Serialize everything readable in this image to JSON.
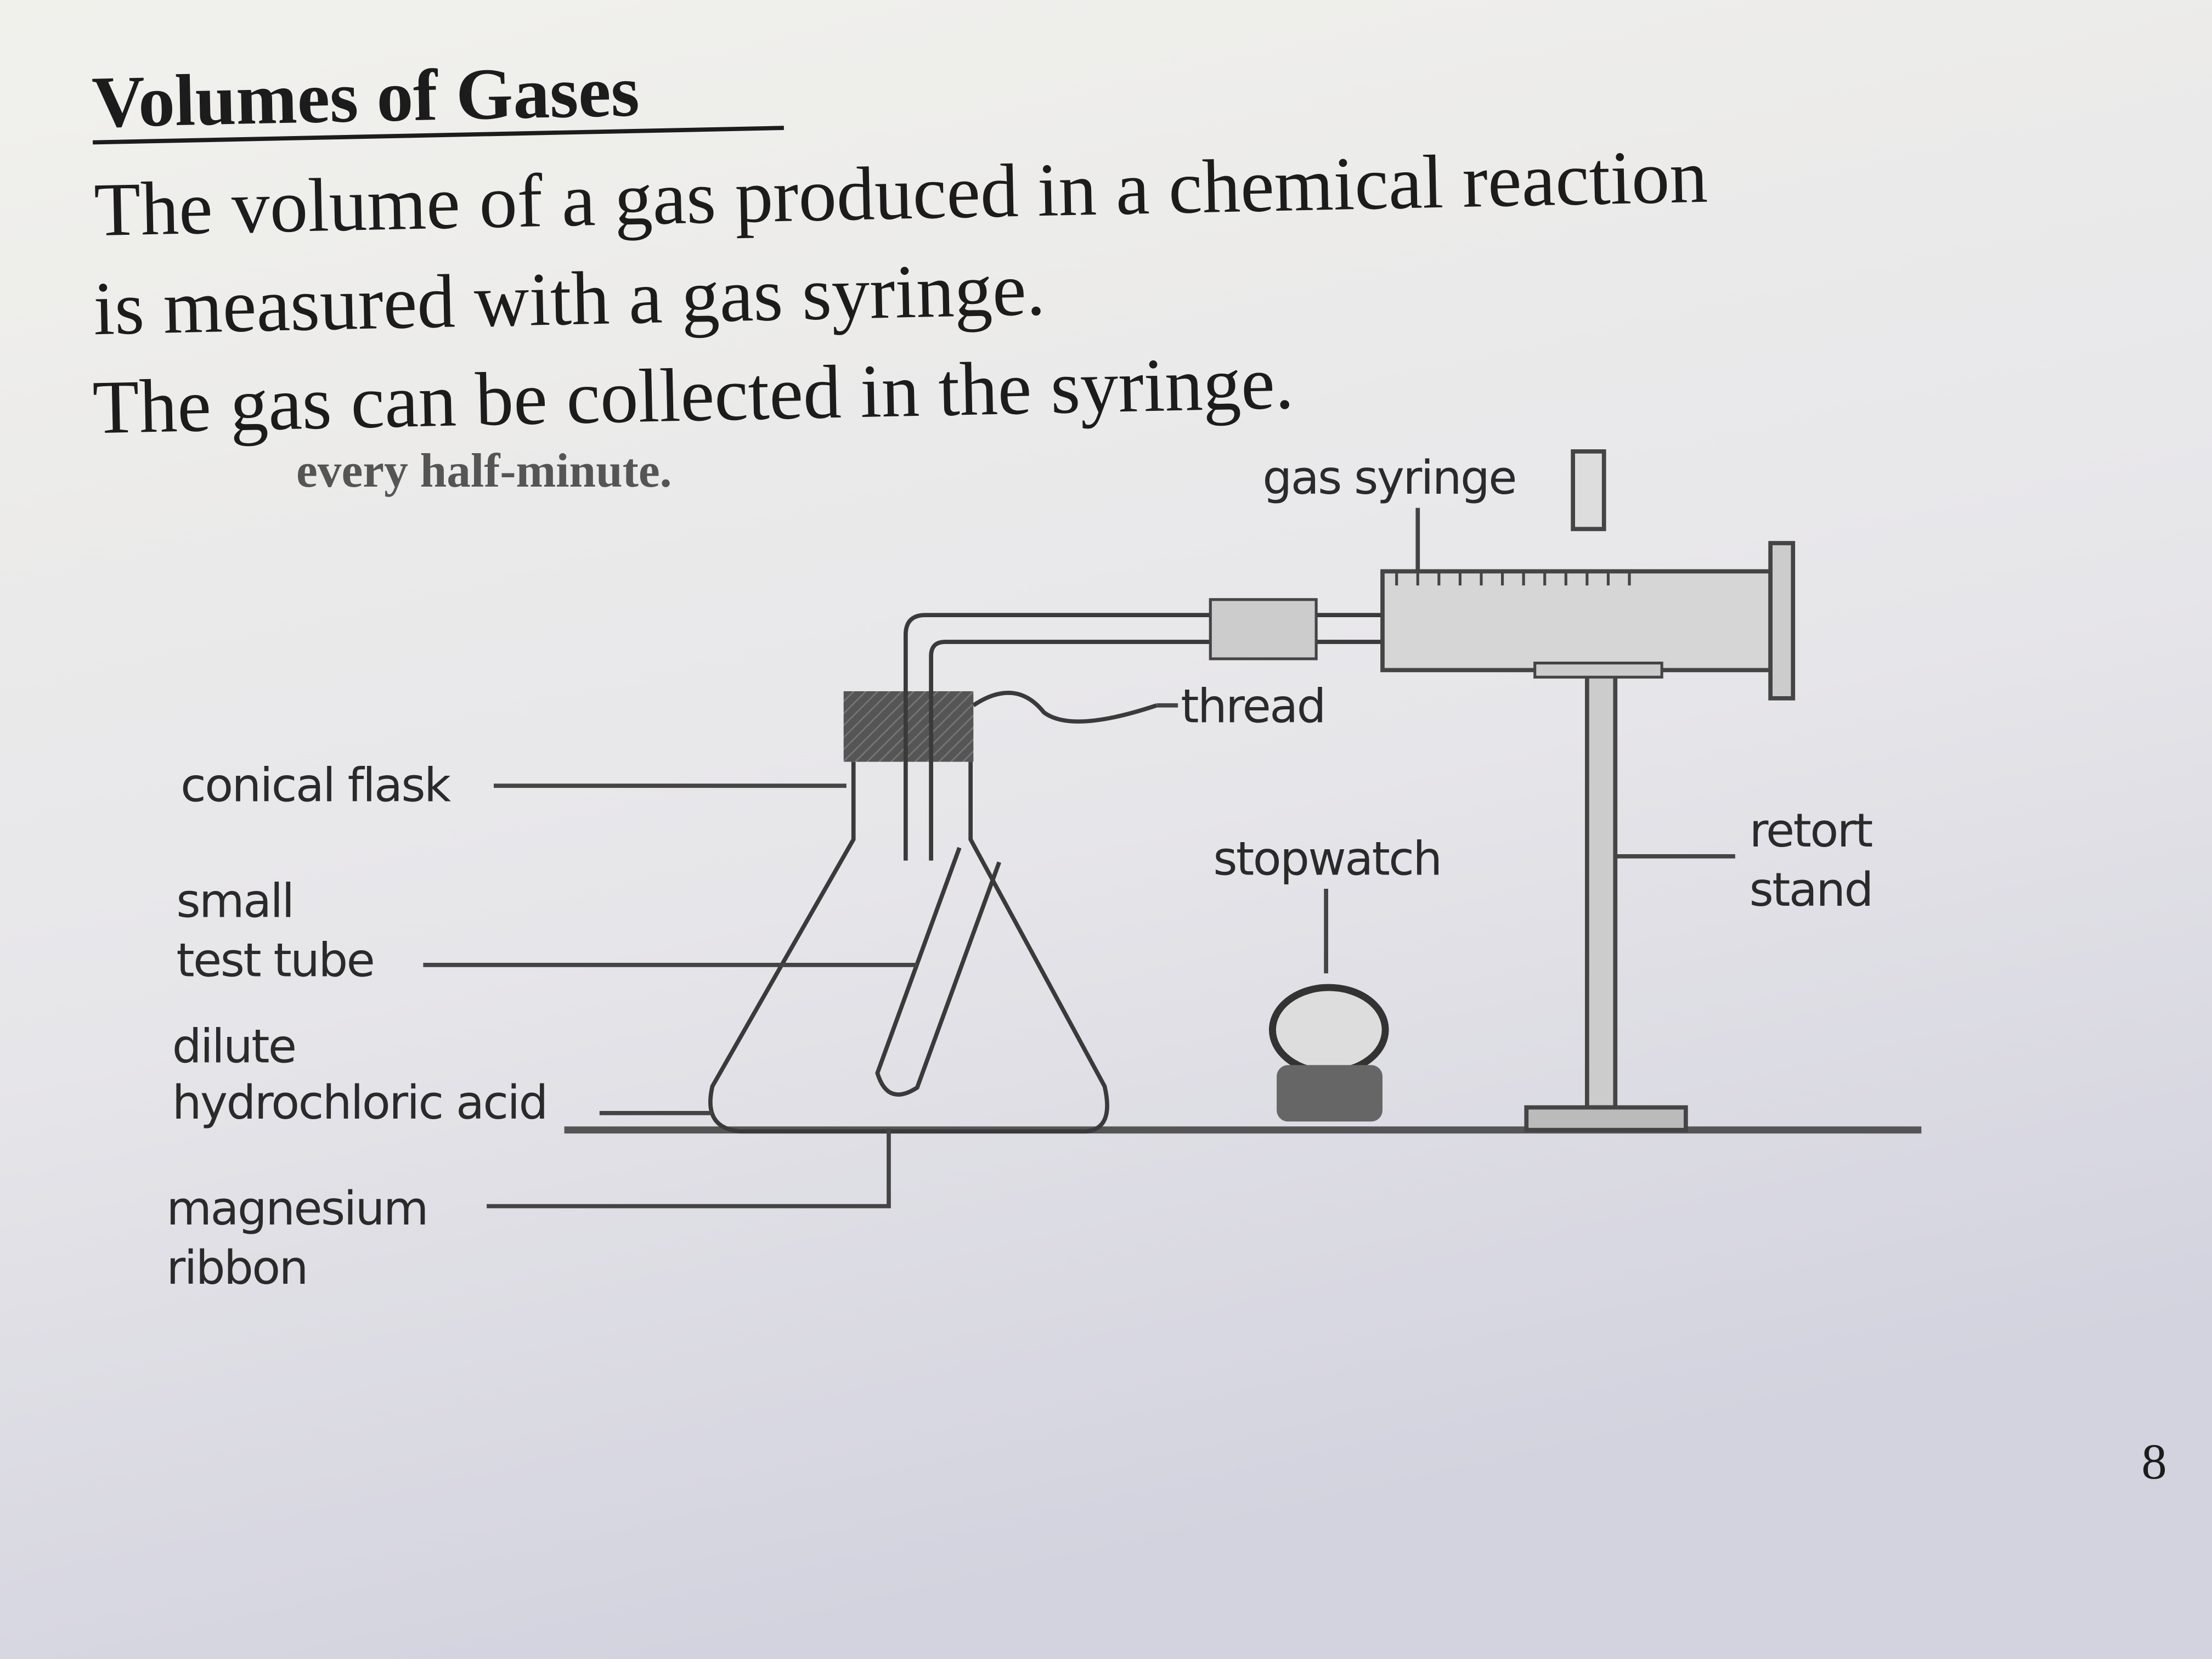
{
  "header": {
    "title": "Volumes of Gases"
  },
  "body": [
    "The volume of a gas produced in a chemical reaction",
    "is measured with a gas syringe.",
    "The gas can be collected in the syringe.",
    "every half-minute."
  ],
  "diagram": {
    "labels": [
      {
        "lines": [
          "gas syringe"
        ]
      },
      {
        "lines": [
          "thread"
        ]
      },
      {
        "lines": [
          "conical flask"
        ]
      },
      {
        "lines": [
          "stopwatch"
        ]
      },
      {
        "lines": [
          "retort",
          "stand"
        ]
      },
      {
        "lines": [
          "small",
          "test tube"
        ]
      },
      {
        "lines": [
          "dilute",
          "hydrochloric acid"
        ]
      },
      {
        "lines": [
          "magnesium",
          "ribbon"
        ]
      }
    ]
  },
  "page_number": "8"
}
